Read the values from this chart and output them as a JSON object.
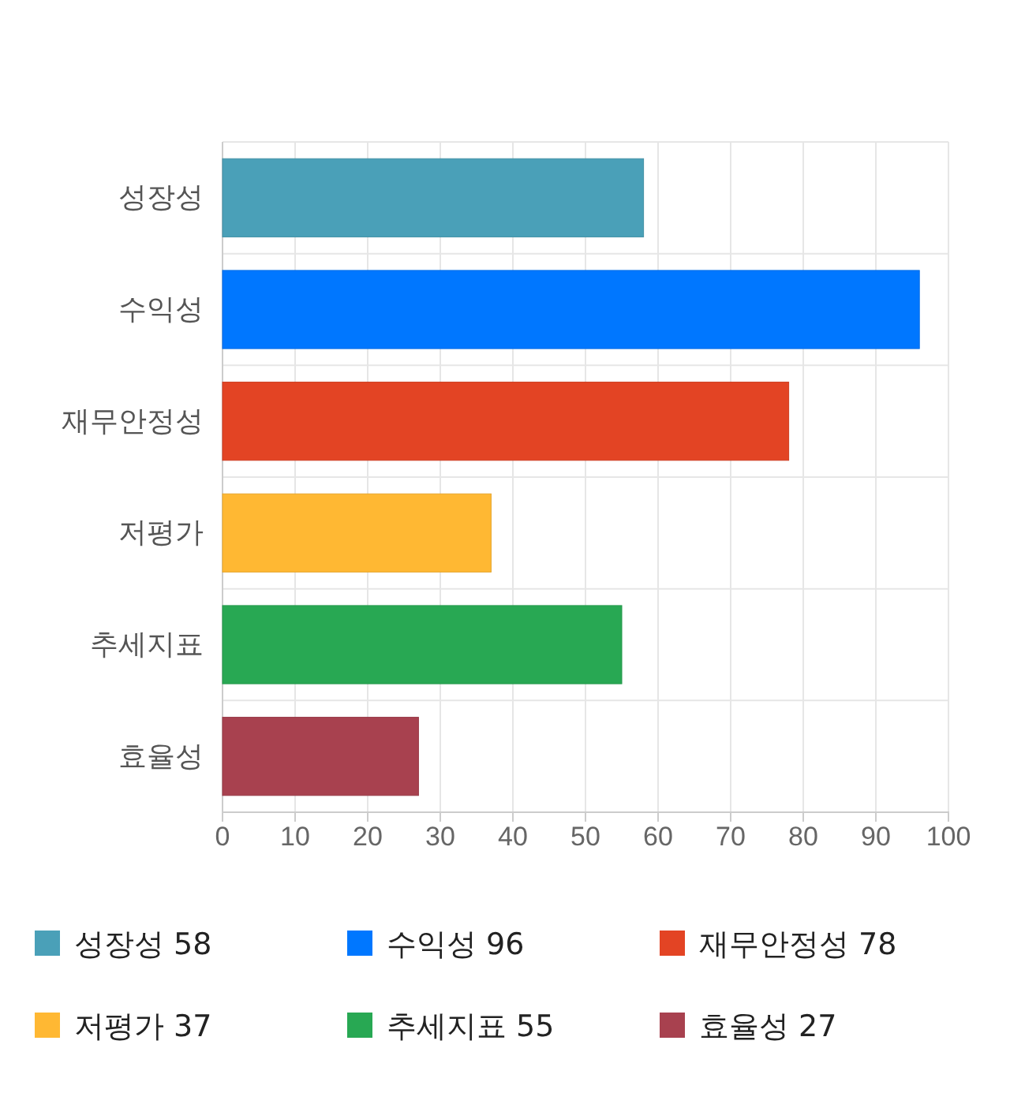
{
  "chart_data": {
    "type": "bar",
    "orientation": "horizontal",
    "categories": [
      "성장성",
      "수익성",
      "재무안정성",
      "저평가",
      "추세지표",
      "효율성"
    ],
    "series": [
      {
        "name": "성장성 58",
        "color": "#4aa0b8",
        "values": [
          58,
          null,
          null,
          null,
          null,
          null
        ]
      },
      {
        "name": "수익성 96",
        "color": "#0077ff",
        "values": [
          null,
          96,
          null,
          null,
          null,
          null
        ]
      },
      {
        "name": "재무안정성 78",
        "color": "#e34424",
        "values": [
          null,
          null,
          78,
          null,
          null,
          null
        ]
      },
      {
        "name": "저평가 37",
        "color": "#ffb833",
        "values": [
          null,
          null,
          null,
          37,
          null,
          null
        ]
      },
      {
        "name": "추세지표 55",
        "color": "#28a853",
        "values": [
          null,
          null,
          null,
          null,
          55,
          null
        ]
      },
      {
        "name": "효율성 27",
        "color": "#a8414f",
        "values": [
          null,
          null,
          null,
          null,
          null,
          27
        ]
      }
    ],
    "xlim": [
      0,
      100
    ],
    "xticks": [
      0,
      10,
      20,
      30,
      40,
      50,
      60,
      70,
      80,
      90,
      100
    ],
    "grid": true,
    "legend": "bottom"
  }
}
